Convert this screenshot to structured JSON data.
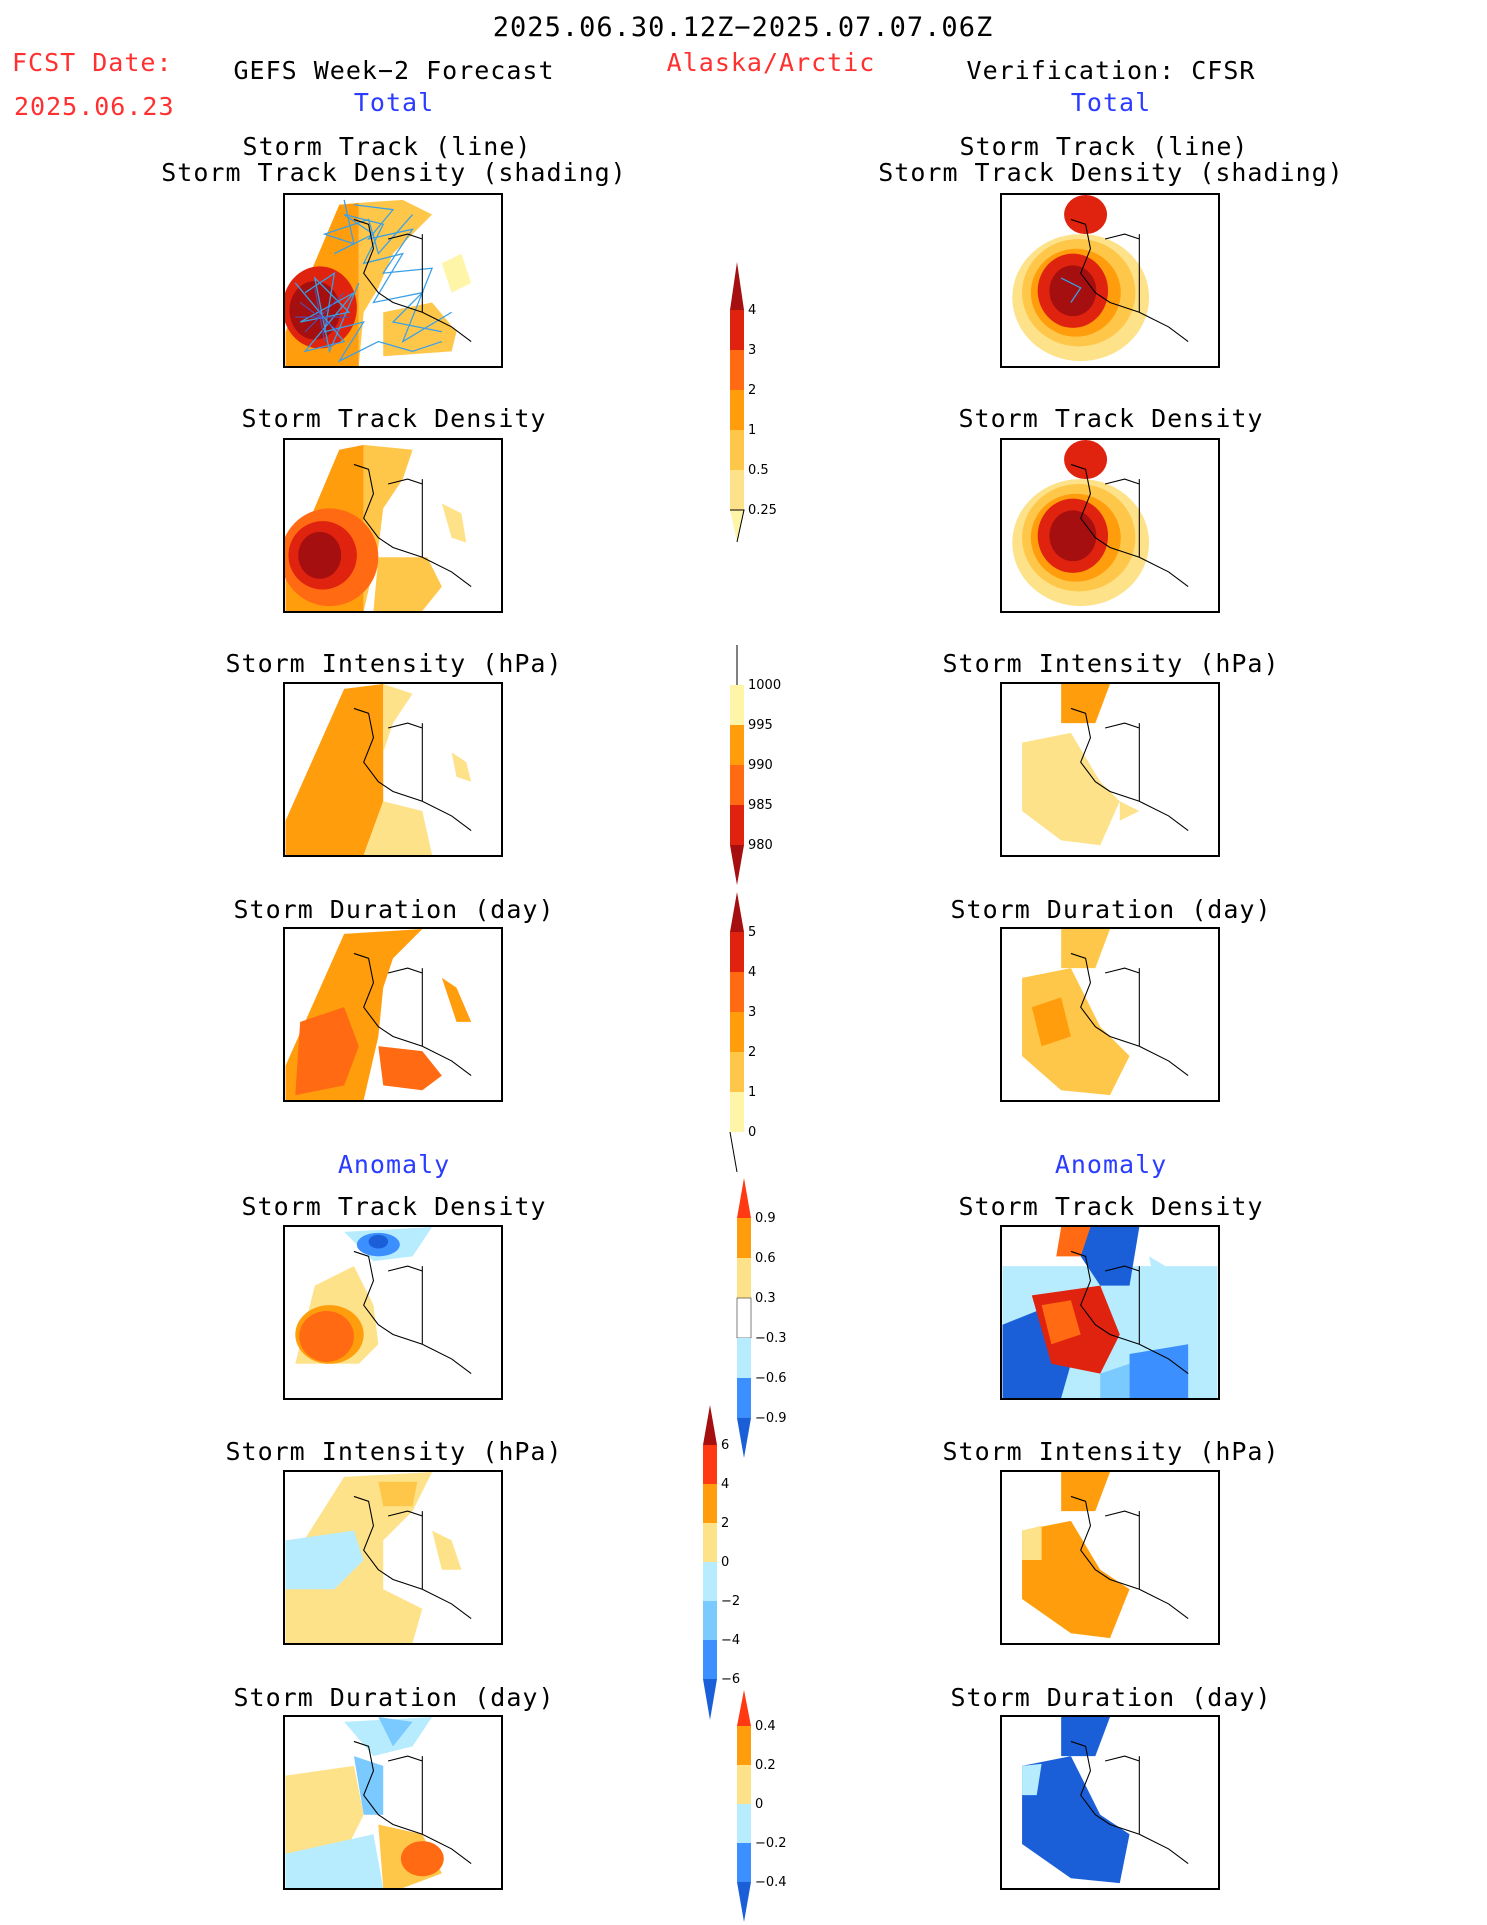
{
  "header": {
    "date_range": "2025.06.30.12Z−2025.07.07.06Z",
    "fcst_label": "FCST Date:",
    "fcst_date": "2025.06.23",
    "left_title": "GEFS Week−2 Forecast",
    "region": "Alaska/Arctic",
    "right_title": "Verification: CFSR",
    "left_total": "Total",
    "right_total": "Total"
  },
  "titles": {
    "track_line": "Storm Track (line)",
    "track_shading": "Storm Track Density (shading)",
    "density": "Storm Track Density",
    "intensity": "Storm Intensity (hPa)",
    "duration": "Storm Duration (day)",
    "anomaly": "Anomaly"
  },
  "colorbars": {
    "density": [
      "4",
      "3",
      "2",
      "1",
      "0.5",
      "0.25"
    ],
    "intensity": [
      "1000",
      "995",
      "990",
      "985",
      "980"
    ],
    "duration": [
      "5",
      "4",
      "3",
      "2",
      "1",
      "0"
    ],
    "density_anom": [
      "0.9",
      "0.6",
      "0.3",
      "−0.3",
      "−0.6",
      "−0.9"
    ],
    "intensity_anom": [
      "6",
      "4",
      "2",
      "0",
      "−2",
      "−4",
      "−6"
    ],
    "duration_anom": [
      "0.4",
      "0.2",
      "0",
      "−0.2",
      "−0.4"
    ]
  },
  "colors": {
    "lightyellow": "#fff5a8",
    "yellow": "#fde28a",
    "lightorange": "#ffc74a",
    "orange": "#ff9d0d",
    "darkorange": "#ff6a12",
    "red": "#e0230f",
    "darkred": "#a50f0f",
    "lightblue": "#b7ecff",
    "skyblue": "#7ac9ff",
    "blue": "#3b8fff",
    "darkblue": "#1b5fd8",
    "track_line": "#3aa0e6"
  }
}
